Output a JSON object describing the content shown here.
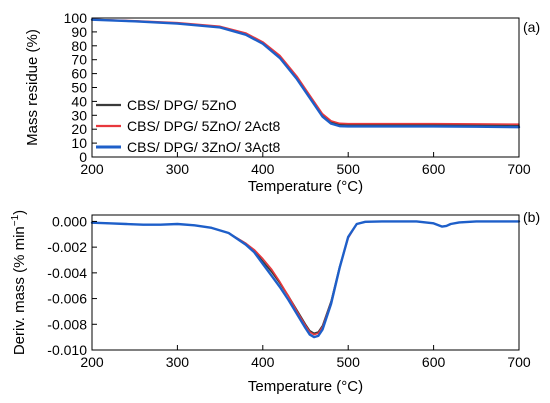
{
  "chart_data": [
    {
      "type": "line",
      "panel_label": "(a)",
      "xlabel": "Temperature (°C)",
      "ylabel": "Mass residue (%)",
      "xlim": [
        200,
        700
      ],
      "ylim": [
        0,
        100
      ],
      "xticks": [
        200,
        300,
        400,
        500,
        600,
        700
      ],
      "yticks": [
        0,
        10,
        20,
        30,
        40,
        50,
        60,
        70,
        80,
        90,
        100
      ],
      "ytick_labels": [
        "0",
        "10",
        "20",
        "30",
        "40",
        "50",
        "60",
        "70",
        "80",
        "90",
        "100"
      ],
      "legend": "left",
      "series": [
        {
          "name": "CBS/ DPG/ 5ZnO",
          "color": "#3a3a3a",
          "width": 1.6,
          "x": [
            200,
            250,
            300,
            350,
            380,
            400,
            420,
            440,
            450,
            460,
            470,
            480,
            490,
            500,
            550,
            600,
            650,
            700
          ],
          "y": [
            99,
            97.8,
            96.3,
            93.5,
            88.5,
            82,
            72,
            57,
            48,
            39,
            30,
            25,
            23.3,
            23,
            23,
            23,
            22.8,
            22.7
          ]
        },
        {
          "name": "CBS/ DPG/ 5ZnO/ 2Act8",
          "color": "#e8383d",
          "width": 1.6,
          "x": [
            200,
            250,
            300,
            350,
            380,
            400,
            420,
            440,
            450,
            460,
            470,
            480,
            490,
            500,
            550,
            600,
            650,
            700
          ],
          "y": [
            99,
            98,
            96.6,
            94,
            89.2,
            82.8,
            73,
            58,
            49,
            40,
            31,
            26,
            24.2,
            24,
            24,
            24,
            23.8,
            23.6
          ]
        },
        {
          "name": "CBS/ DPG/ 3ZnO/ 3Act8",
          "color": "#1e5fc9",
          "width": 2.4,
          "x": [
            200,
            250,
            300,
            350,
            380,
            400,
            420,
            440,
            450,
            460,
            470,
            480,
            490,
            500,
            550,
            600,
            650,
            700
          ],
          "y": [
            98.8,
            97.6,
            96,
            93.2,
            88,
            81.5,
            71.2,
            56,
            47,
            38,
            29,
            24,
            22.2,
            22,
            22,
            22,
            21.8,
            21.5
          ]
        }
      ]
    },
    {
      "type": "line",
      "panel_label": "(b)",
      "xlabel": "Temperature (°C)",
      "ylabel_main": "Deriv. mass (% min",
      "ylabel_sup": "−1",
      "ylabel_end": ")",
      "xlim": [
        200,
        700
      ],
      "ylim": [
        -0.01,
        0.0005
      ],
      "xticks": [
        200,
        300,
        400,
        500,
        600,
        700
      ],
      "yticks": [
        0.0,
        -0.002,
        -0.004,
        -0.006,
        -0.008,
        -0.01
      ],
      "ytick_labels": [
        "0.000",
        "-0.002",
        "-0.004",
        "-0.006",
        "-0.008",
        "-0.010"
      ],
      "series": [
        {
          "name": "CBS/ DPG/ 5ZnO",
          "color": "#3a3a3a",
          "width": 1.6,
          "x": [
            200,
            220,
            240,
            260,
            280,
            300,
            320,
            340,
            360,
            380,
            390,
            400,
            410,
            420,
            430,
            440,
            450,
            455,
            460,
            465,
            470,
            480,
            490,
            500,
            510,
            520,
            540,
            560,
            580,
            600,
            610,
            615,
            620,
            630,
            650,
            680,
            700
          ],
          "y": [
            -0.0001,
            -0.00015,
            -0.0002,
            -0.00025,
            -0.00025,
            -0.0002,
            -0.0003,
            -0.0005,
            -0.0009,
            -0.0017,
            -0.0023,
            -0.0031,
            -0.0039,
            -0.0048,
            -0.0058,
            -0.0069,
            -0.008,
            -0.0085,
            -0.0087,
            -0.0086,
            -0.0081,
            -0.0062,
            -0.0035,
            -0.0012,
            -0.0002,
            -3e-05,
            0.0,
            0.0,
            0.0,
            -0.00015,
            -0.0004,
            -0.00035,
            -0.0002,
            -8e-05,
            0.0,
            0.0,
            0.0
          ]
        },
        {
          "name": "CBS/ DPG/ 5ZnO/ 2Act8",
          "color": "#e8383d",
          "width": 1.6,
          "x": [
            200,
            220,
            240,
            260,
            280,
            300,
            320,
            340,
            360,
            380,
            390,
            400,
            410,
            420,
            430,
            440,
            450,
            455,
            460,
            465,
            470,
            480,
            490,
            500,
            510,
            520,
            540,
            560,
            580,
            600,
            610,
            615,
            620,
            630,
            650,
            680,
            700
          ],
          "y": [
            -0.0001,
            -0.00015,
            -0.0002,
            -0.00025,
            -0.00025,
            -0.0002,
            -0.0003,
            -0.0005,
            -0.0009,
            -0.0017,
            -0.0022,
            -0.0029,
            -0.0037,
            -0.0047,
            -0.0058,
            -0.007,
            -0.0081,
            -0.0086,
            -0.0088,
            -0.0087,
            -0.0082,
            -0.0063,
            -0.0036,
            -0.0013,
            -0.0002,
            -3e-05,
            0.0,
            0.0,
            0.0,
            -0.00015,
            -0.0004,
            -0.00035,
            -0.0002,
            -8e-05,
            0.0,
            0.0,
            0.0
          ]
        },
        {
          "name": "CBS/ DPG/ 3ZnO/ 3Act8",
          "color": "#1e5fc9",
          "width": 2.4,
          "x": [
            200,
            220,
            240,
            260,
            280,
            300,
            320,
            340,
            360,
            380,
            390,
            400,
            410,
            420,
            430,
            440,
            450,
            455,
            460,
            465,
            470,
            480,
            490,
            500,
            510,
            520,
            540,
            560,
            580,
            600,
            610,
            615,
            620,
            630,
            650,
            680,
            700
          ],
          "y": [
            -0.0001,
            -0.00015,
            -0.0002,
            -0.00025,
            -0.00025,
            -0.0002,
            -0.0003,
            -0.0005,
            -0.0009,
            -0.0018,
            -0.0024,
            -0.0033,
            -0.0042,
            -0.0051,
            -0.0061,
            -0.0072,
            -0.0083,
            -0.0088,
            -0.009,
            -0.0089,
            -0.0084,
            -0.0064,
            -0.0036,
            -0.0012,
            -0.0002,
            -3e-05,
            0.0,
            0.0,
            0.0,
            -0.00015,
            -0.0004,
            -0.00035,
            -0.0002,
            -8e-05,
            0.0,
            0.0,
            0.0
          ]
        }
      ]
    }
  ]
}
